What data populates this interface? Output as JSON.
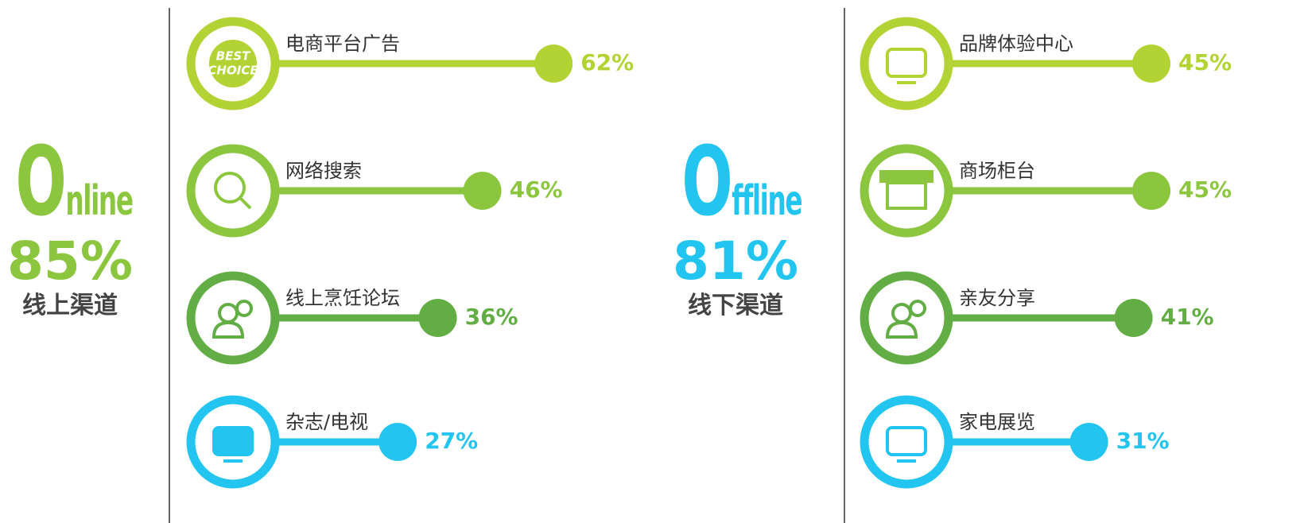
{
  "chart_data": [
    {
      "type": "bar",
      "title": "Online",
      "total": 85,
      "total_label": "85%",
      "subtitle": "线上渠道",
      "categories": [
        "电商平台广告",
        "网络搜索",
        "线上烹饪论坛",
        "杂志/电视"
      ],
      "values": [
        62,
        46,
        36,
        27
      ],
      "value_labels": [
        "62%",
        "46%",
        "36%",
        "27%"
      ],
      "colors": [
        "#b3d234",
        "#8cc63f",
        "#63ad45",
        "#22c5ef"
      ],
      "color": "#8cc63f",
      "badge": [
        "BEST",
        "CHOICE"
      ]
    },
    {
      "type": "bar",
      "title": "Offline",
      "total": 81,
      "total_label": "81%",
      "subtitle": "线下渠道",
      "categories": [
        "品牌体验中心",
        "商场柜台",
        "亲友分享",
        "家电展览"
      ],
      "values": [
        45,
        45,
        41,
        31
      ],
      "value_labels": [
        "45%",
        "45%",
        "41%",
        "31%"
      ],
      "colors": [
        "#b3d234",
        "#8cc63f",
        "#63ad45",
        "#22c5ef"
      ],
      "color": "#22c5ef"
    }
  ]
}
